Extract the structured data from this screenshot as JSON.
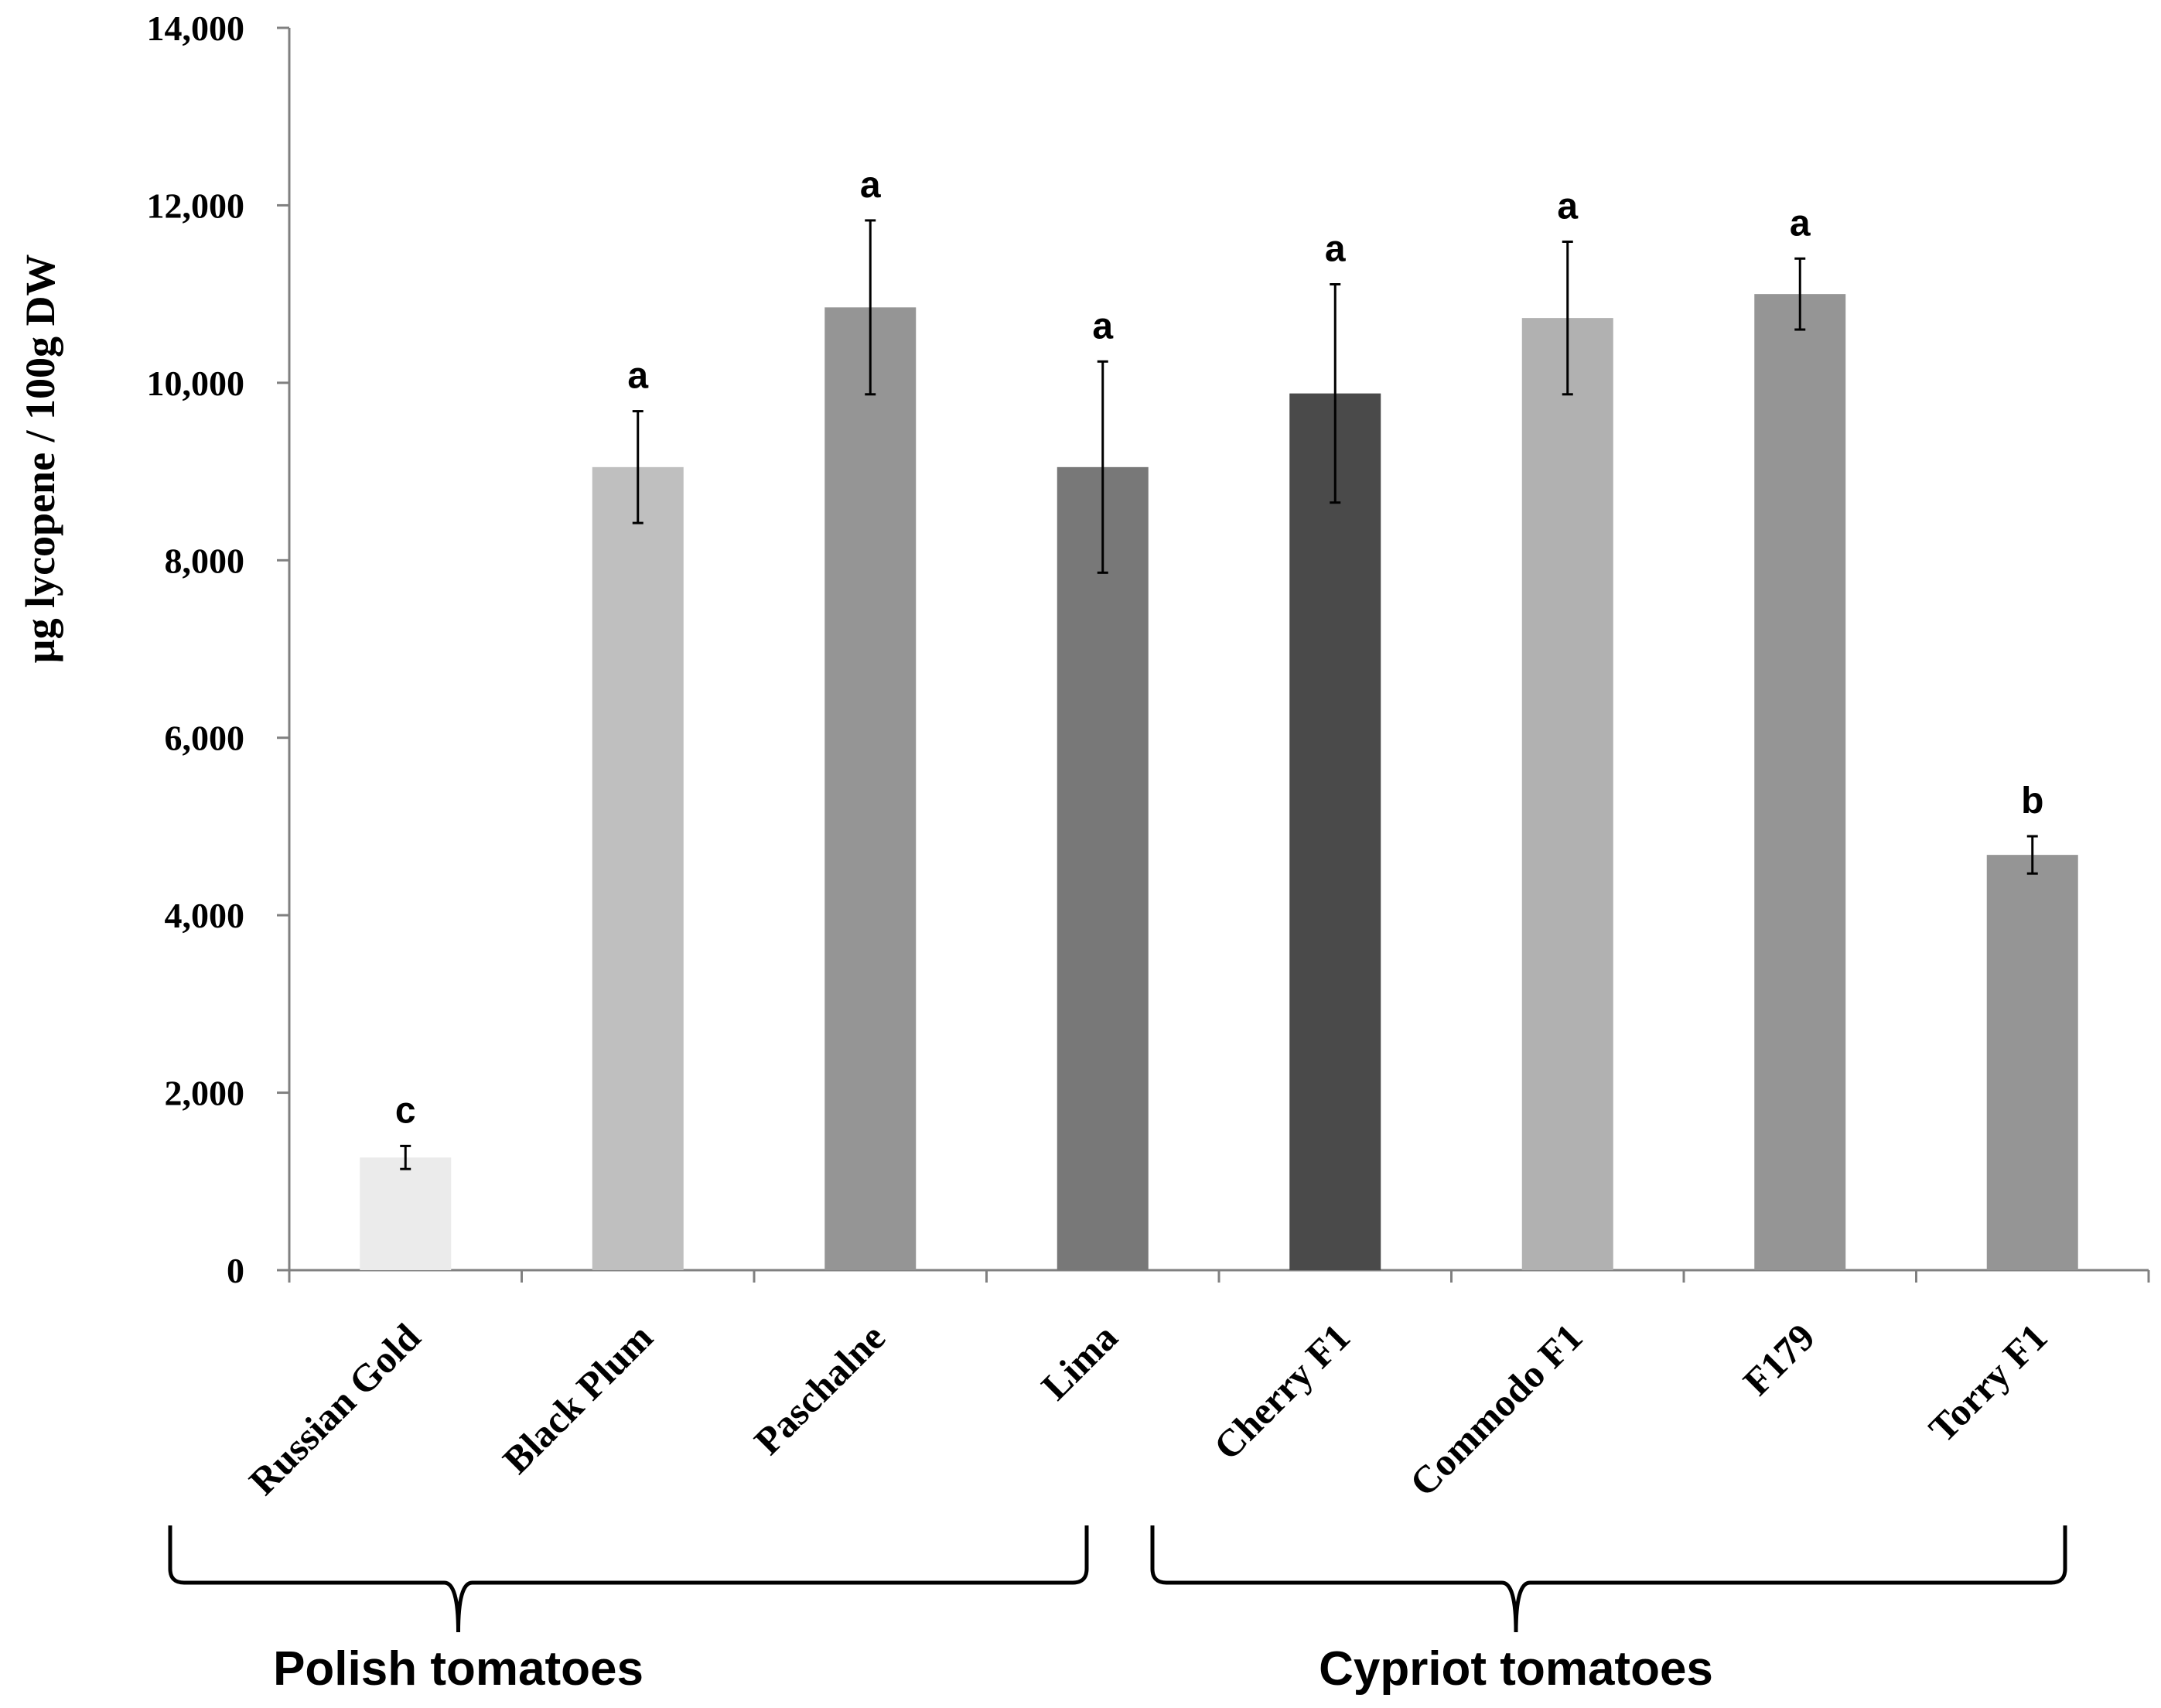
{
  "chart_data": {
    "type": "bar",
    "title": "",
    "xlabel": "",
    "ylabel": "µg lycopene / 100g DW",
    "ylim": [
      0,
      14000
    ],
    "yticks": [
      0,
      2000,
      4000,
      6000,
      8000,
      10000,
      12000,
      14000
    ],
    "ytick_labels": [
      "0",
      "2,000",
      "4,000",
      "6,000",
      "8,000",
      "10,000",
      "12,000",
      "14,000"
    ],
    "grid": false,
    "categories": [
      "Russian Gold",
      "Black Plum",
      "Paschalne",
      "Lima",
      "Cherry F1",
      "Commodo F1",
      "F179",
      "Torry F1"
    ],
    "values": [
      1270,
      9050,
      10850,
      9050,
      9880,
      10730,
      11000,
      4680
    ],
    "errors": [
      130,
      630,
      980,
      1190,
      1230,
      860,
      400,
      210
    ],
    "significance": [
      "c",
      "a",
      "a",
      "a",
      "a",
      "a",
      "a",
      "b"
    ],
    "colors": [
      "#ebebeb",
      "#bfbfbf",
      "#959595",
      "#787878",
      "#4a4a4a",
      "#b1b1b1",
      "#959595",
      "#959595"
    ],
    "groups": [
      {
        "label": "Polish tomatoes",
        "start": 0,
        "end": 3
      },
      {
        "label": "Cypriot tomatoes",
        "start": 4,
        "end": 7
      }
    ]
  }
}
